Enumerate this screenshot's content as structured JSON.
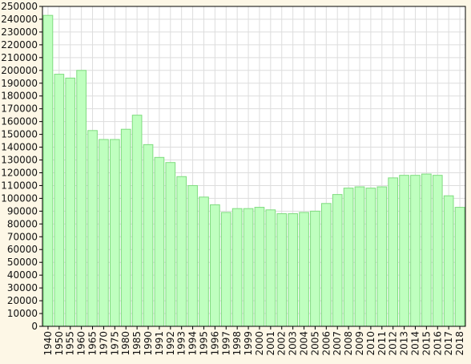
{
  "chart_data": {
    "type": "bar",
    "title": "",
    "xlabel": "",
    "ylabel": "",
    "ylim": [
      0,
      250000
    ],
    "ytick_step": 10000,
    "grid": true,
    "legend": "none",
    "colors": {
      "bar_fill": "#bfffbf",
      "bar_stroke": "#7fdc7f",
      "grid": "#dddddd",
      "plot_background": "#ffffff",
      "page_background": "#fdf7e6"
    },
    "categories": [
      "1940",
      "1950",
      "1955",
      "1960",
      "1965",
      "1970",
      "1975",
      "1980",
      "1985",
      "1990",
      "1991",
      "1992",
      "1993",
      "1994",
      "1995",
      "1996",
      "1997",
      "1998",
      "1999",
      "2000",
      "2001",
      "2002",
      "2003",
      "2004",
      "2005",
      "2006",
      "2007",
      "2008",
      "2009",
      "2010",
      "2011",
      "2012",
      "2013",
      "2014",
      "2015",
      "2016",
      "2017",
      "2018"
    ],
    "values": [
      243000,
      197000,
      194000,
      200000,
      153000,
      146000,
      146000,
      154000,
      165000,
      142000,
      132000,
      128000,
      117000,
      110000,
      101000,
      95000,
      89000,
      92000,
      92000,
      93000,
      91000,
      88000,
      88000,
      89000,
      90000,
      96000,
      103000,
      108000,
      109000,
      108000,
      109000,
      116000,
      118000,
      118000,
      119000,
      118000,
      102000,
      93000
    ]
  }
}
